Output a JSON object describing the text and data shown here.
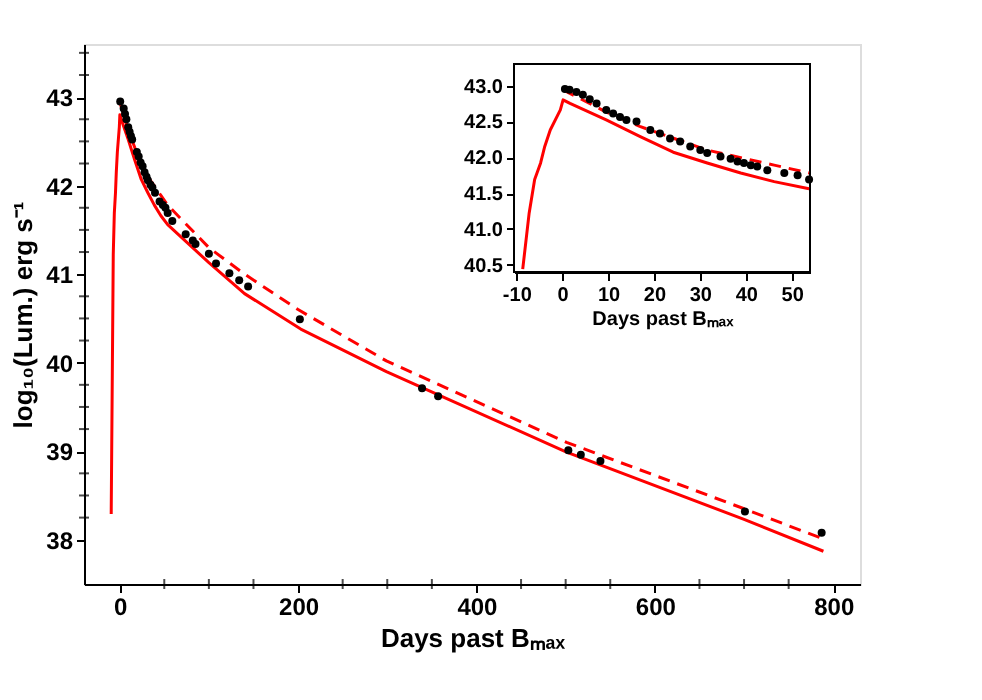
{
  "chart_data": [
    {
      "type": "line",
      "xlabel": "Days past Bₘₐₓ",
      "ylabel": "log₁₀(Lum.) erg s⁻¹",
      "xlim": [
        -40,
        830
      ],
      "ylim": [
        37.5,
        43.6
      ],
      "xticks": [
        0,
        {
          "value": 50,
          "label": null
        },
        {
          "value": 100,
          "label": null
        },
        {
          "value": 150,
          "label": null
        },
        200,
        {
          "value": 250,
          "label": null
        },
        {
          "value": 300,
          "label": null
        },
        {
          "value": 350,
          "label": null
        },
        400,
        {
          "value": 450,
          "label": null
        },
        {
          "value": 500,
          "label": null
        },
        {
          "value": 550,
          "label": null
        },
        600,
        {
          "value": 650,
          "label": null
        },
        {
          "value": 700,
          "label": null
        },
        {
          "value": 750,
          "label": null
        },
        800
      ],
      "yticks": [
        38,
        {
          "value": 38.25,
          "label": null
        },
        {
          "value": 38.5,
          "label": null
        },
        {
          "value": 38.75,
          "label": null
        },
        39,
        {
          "value": 39.25,
          "label": null
        },
        {
          "value": 39.5,
          "label": null
        },
        {
          "value": 39.75,
          "label": null
        },
        40,
        {
          "value": 40.25,
          "label": null
        },
        {
          "value": 40.5,
          "label": null
        },
        {
          "value": 40.75,
          "label": null
        },
        41,
        {
          "value": 41.25,
          "label": null
        },
        {
          "value": 41.5,
          "label": null
        },
        {
          "value": 41.75,
          "label": null
        },
        42,
        {
          "value": 42.25,
          "label": null
        },
        {
          "value": 42.5,
          "label": null
        },
        {
          "value": 42.75,
          "label": null
        },
        43,
        {
          "value": 43.25,
          "label": null
        },
        {
          "value": 43.5,
          "label": null
        }
      ],
      "series": [
        {
          "type": "line",
          "color": "#ff0000",
          "line_style": "solid",
          "x": [
            -9.5,
            -7.2,
            -6.0,
            -4.7,
            -3.8,
            -2.6,
            -0.4,
            0.2,
            1.7,
            9.6,
            16.9,
            24.2,
            31.6,
            38.9,
            46.2,
            53.8,
            100,
            140,
            203,
            299,
            501,
            700,
            789
          ],
          "values": [
            38.29,
            41.22,
            41.69,
            41.92,
            42.15,
            42.38,
            42.66,
            42.8,
            42.75,
            42.52,
            42.29,
            42.07,
            41.92,
            41.78,
            41.66,
            41.56,
            41.13,
            40.78,
            40.38,
            39.9,
            38.99,
            38.23,
            37.87
          ]
        },
        {
          "type": "line",
          "color": "#ff0000",
          "line_style": "dashed",
          "x": [
            0.2,
            9.6,
            16.9,
            31.6,
            46.2,
            53.8,
            100,
            140,
            200,
            299,
            501,
            700,
            786
          ],
          "values": [
            42.94,
            42.63,
            42.43,
            42.1,
            41.89,
            41.78,
            41.3,
            41.0,
            40.6,
            40.02,
            39.1,
            38.35,
            38.02
          ]
        },
        {
          "type": "scatter",
          "color": "#000000",
          "marker": "circle",
          "x": [
            0.6,
            1.6,
            4.5,
            6.0,
            7.5,
            9.6,
            11.1,
            12.6,
            14.0,
            19.2,
            21.3,
            23.5,
            25.7,
            27.9,
            30.1,
            31.6,
            34.5,
            36.7,
            39.6,
            44.7,
            48.4,
            51.3,
            53.8,
            59,
            74,
            82,
            85,
            100,
            108,
            123,
            134,
            144,
            202,
            339,
            357,
            503,
            517,
            539,
            701,
            787
          ],
          "values": [
            42.95,
            null,
            42.87,
            42.81,
            42.75,
            42.66,
            42.61,
            42.56,
            42.52,
            42.38,
            42.33,
            42.26,
            42.22,
            42.15,
            42.1,
            42.06,
            42.01,
            41.98,
            41.92,
            41.82,
            41.78,
            41.75,
            41.69,
            41.6,
            41.45,
            41.38,
            41.34,
            41.23,
            41.12,
            41.01,
            40.93,
            40.86,
            40.49,
            39.71,
            39.62,
            39.01,
            38.96,
            38.89,
            38.32,
            38.08
          ]
        }
      ]
    },
    {
      "type": "line",
      "xlabel": "Days past Bₘₐₓ",
      "xlim": [
        -10.5,
        54
      ],
      "ylim": [
        40.4,
        43.3
      ],
      "xticks": [
        -10,
        0,
        10,
        20,
        30,
        40,
        50
      ],
      "yticks": [
        40.5,
        {
          "value": 41,
          "label": "41.0"
        },
        41.5,
        {
          "value": 42,
          "label": "42.0"
        },
        42.5,
        {
          "value": 43,
          "label": "43.0"
        }
      ],
      "series": [
        {
          "type": "line",
          "color": "#ff0000",
          "line_style": "solid",
          "x": [
            -8.6,
            -7.2,
            -6.0,
            -4.7,
            -3.8,
            -2.6,
            -0.4,
            0.2,
            1.7,
            9.6,
            16.9,
            24.2,
            31.6,
            38.9,
            46.2,
            53.8
          ],
          "values": [
            40.44,
            41.22,
            41.69,
            41.92,
            42.15,
            42.38,
            42.66,
            42.8,
            42.75,
            42.52,
            42.29,
            42.07,
            41.92,
            41.78,
            41.66,
            41.56
          ]
        },
        {
          "type": "line",
          "color": "#ff0000",
          "line_style": "dashed",
          "x": [
            0.2,
            9.6,
            16.9,
            31.6,
            46.2,
            53.8
          ],
          "values": [
            42.94,
            42.63,
            42.43,
            42.1,
            41.89,
            41.78
          ]
        },
        {
          "type": "scatter",
          "color": "#000000",
          "marker": "circle",
          "x": [
            0.6,
            1.6,
            3.1,
            4.5,
            6.0,
            7.5,
            9.6,
            11.1,
            12.6,
            14.0,
            16.2,
            19.2,
            21.3,
            23.5,
            25.7,
            27.9,
            30.1,
            31.6,
            34.5,
            36.7,
            38.2,
            39.6,
            41.1,
            42.5,
            44.7,
            48.4,
            51.3,
            53.8
          ],
          "values": [
            42.95,
            42.94,
            42.91,
            42.87,
            42.81,
            42.75,
            42.66,
            42.61,
            42.56,
            42.52,
            42.5,
            42.38,
            42.33,
            42.26,
            42.22,
            42.15,
            42.1,
            42.06,
            42.01,
            41.98,
            41.94,
            41.92,
            41.89,
            41.87,
            41.82,
            41.78,
            41.75,
            41.69
          ]
        }
      ]
    }
  ]
}
